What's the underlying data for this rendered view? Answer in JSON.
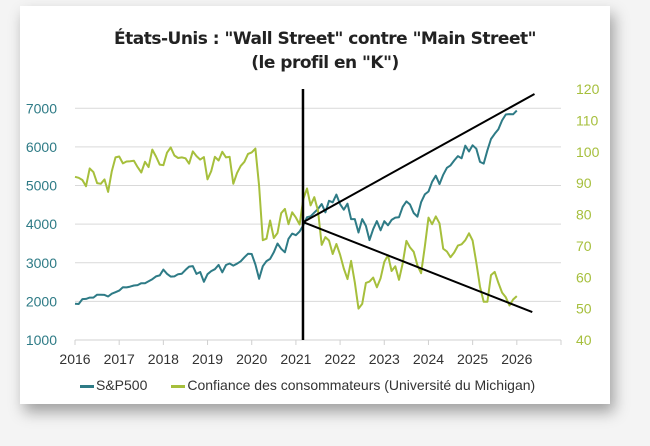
{
  "chart_data": {
    "type": "line",
    "title": "États-Unis : \"Wall Street\" contre \"Main Street\"",
    "subtitle": "(le profil en \"K\")",
    "x_ticks": [
      "2016",
      "2017",
      "2018",
      "2019",
      "2020",
      "2021",
      "2022",
      "2023",
      "2024",
      "2025",
      "2026"
    ],
    "xlim": [
      2016,
      2027
    ],
    "y_left": {
      "ylim": [
        1000,
        7500
      ],
      "ticks": [
        "1000",
        "2000",
        "3000",
        "4000",
        "5000",
        "6000",
        "7000"
      ],
      "color": "#2e7b86"
    },
    "y_right": {
      "ylim": [
        40,
        120
      ],
      "ticks": [
        "40",
        "50",
        "60",
        "70",
        "80",
        "90",
        "100",
        "110",
        "120"
      ],
      "color": "#a6bf3c"
    },
    "grid": true,
    "legend_position": "bottom",
    "x_start": "2016-01",
    "frequency": "monthly",
    "series": [
      {
        "name": "S&P500",
        "axis": "left",
        "color": "#2e7b86",
        "values": [
          1940,
          1932,
          2060,
          2065,
          2097,
          2099,
          2174,
          2171,
          2168,
          2126,
          2199,
          2239,
          2279,
          2364,
          2363,
          2384,
          2412,
          2423,
          2470,
          2472,
          2519,
          2575,
          2648,
          2674,
          2824,
          2714,
          2641,
          2648,
          2705,
          2718,
          2816,
          2902,
          2914,
          2712,
          2760,
          2507,
          2704,
          2784,
          2834,
          2946,
          2752,
          2942,
          2980,
          2926,
          2977,
          3038,
          3141,
          3231,
          3226,
          2954,
          2585,
          2912,
          3044,
          3100,
          3271,
          3500,
          3363,
          3270,
          3622,
          3756,
          3714,
          3811,
          3973,
          4181,
          4204,
          4298,
          4395,
          4523,
          4308,
          4605,
          4567,
          4766,
          4516,
          4374,
          4530,
          4132,
          4132,
          3785,
          4130,
          3955,
          3586,
          3872,
          4080,
          3840,
          4077,
          3970,
          4109,
          4169,
          4180,
          4450,
          4589,
          4508,
          4288,
          4194,
          4568,
          4770,
          4846,
          5096,
          5254,
          5036,
          5278,
          5460,
          5522,
          5648,
          5762,
          5705,
          6032,
          5882,
          6041,
          5955,
          5612,
          5569,
          5912,
          6205,
          6339,
          6460,
          6688,
          6840,
          6849,
          6845,
          6940
        ]
      },
      {
        "name": "Confiance des consommateurs (Université du Michigan)",
        "axis": "right",
        "color": "#a6bf3c",
        "values": [
          92.0,
          91.7,
          91.0,
          89.0,
          94.7,
          93.5,
          90.0,
          89.8,
          91.2,
          87.2,
          93.8,
          98.2,
          98.5,
          96.3,
          96.9,
          97.0,
          97.1,
          95.1,
          93.4,
          96.8,
          95.1,
          100.7,
          98.5,
          95.9,
          95.7,
          99.7,
          101.4,
          98.8,
          98.0,
          98.2,
          97.9,
          96.2,
          100.1,
          98.6,
          97.5,
          98.3,
          91.2,
          93.8,
          98.4,
          97.2,
          100.0,
          98.2,
          98.4,
          89.8,
          93.2,
          95.5,
          96.8,
          99.3,
          99.8,
          101.0,
          89.1,
          71.8,
          72.3,
          78.1,
          72.5,
          74.1,
          80.4,
          81.8,
          76.9,
          80.7,
          79.0,
          76.8,
          84.9,
          88.3,
          82.9,
          85.5,
          81.2,
          70.3,
          72.8,
          71.7,
          67.4,
          70.6,
          67.2,
          62.8,
          59.4,
          65.2,
          58.4,
          50.0,
          51.5,
          58.2,
          58.6,
          59.9,
          56.8,
          59.7,
          64.9,
          67.0,
          62.0,
          63.5,
          59.2,
          64.4,
          71.6,
          69.5,
          68.1,
          63.8,
          61.3,
          69.7,
          79.0,
          76.9,
          79.4,
          77.2,
          69.1,
          68.2,
          66.4,
          67.9,
          70.1,
          70.5,
          71.8,
          74.0,
          71.7,
          64.7,
          57.0,
          52.2,
          52.2,
          60.7,
          61.7,
          58.2,
          55.1,
          53.6,
          51.0,
          52.9,
          54.0
        ]
      }
    ],
    "annotations": [
      {
        "type": "vertical-line",
        "x": 2021.16
      },
      {
        "type": "trend-line",
        "axis": "left",
        "from": [
          2021.16,
          4050
        ],
        "to": [
          2026.4,
          7370
        ]
      },
      {
        "type": "trend-line",
        "axis": "right",
        "from": [
          2021.16,
          77.6
        ],
        "to": [
          2026.35,
          48.9
        ]
      }
    ]
  }
}
